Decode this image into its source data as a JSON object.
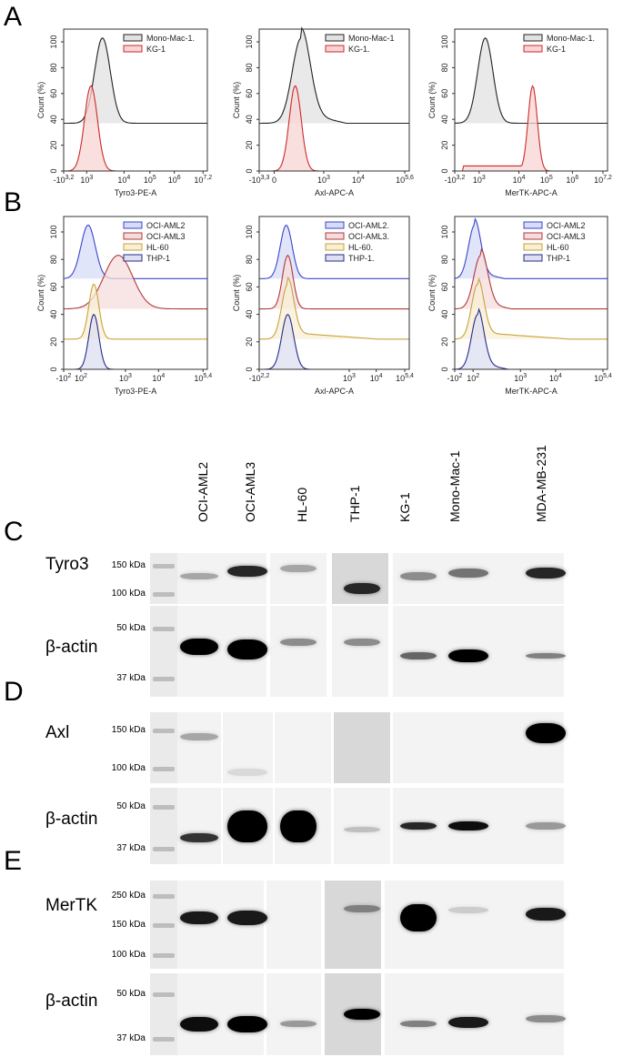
{
  "panels": {
    "A": "A",
    "B": "B",
    "C": "C",
    "D": "D",
    "E": "E"
  },
  "flow": {
    "ylabel": "Count  (%)",
    "yticks": [
      "0",
      "20",
      "40",
      "60",
      "80",
      "100"
    ],
    "row_A": [
      {
        "xlabel": "Tyro3-PE-A",
        "xticks": [
          {
            "b": "-10",
            "e": "3,2"
          },
          {
            "b": "10",
            "e": "3"
          },
          {
            "b": "10",
            "e": "4"
          },
          {
            "b": "10",
            "e": "5"
          },
          {
            "b": "10",
            "e": "6"
          },
          {
            "b": "10",
            "e": "7,2"
          }
        ],
        "legend": [
          {
            "label": "Mono-Mac-1.",
            "color": "#222222",
            "fill": "#e2e2e2"
          },
          {
            "label": "KG-1",
            "color": "#cc2a2a",
            "fill": "#f8d4d4"
          }
        ]
      },
      {
        "xlabel": "Axl-APC-A",
        "xticks": [
          {
            "b": "-10",
            "e": "3,3"
          },
          {
            "b": "0",
            "e": ""
          },
          {
            "b": "10",
            "e": "3"
          },
          {
            "b": "10",
            "e": "4"
          },
          {
            "b": "10",
            "e": "5,6"
          }
        ],
        "legend": [
          {
            "label": "Mono-Mac-1",
            "color": "#222222",
            "fill": "#e2e2e2"
          },
          {
            "label": "KG-1.",
            "color": "#cc2a2a",
            "fill": "#f8d4d4"
          }
        ]
      },
      {
        "xlabel": "MerTK-APC-A",
        "xticks": [
          {
            "b": "-10",
            "e": "3,2"
          },
          {
            "b": "10",
            "e": "3"
          },
          {
            "b": "10",
            "e": "4"
          },
          {
            "b": "10",
            "e": "5"
          },
          {
            "b": "10",
            "e": "6"
          },
          {
            "b": "10",
            "e": "7,2"
          }
        ],
        "legend": [
          {
            "label": "Mono-Mac-1.",
            "color": "#222222",
            "fill": "#e2e2e2"
          },
          {
            "label": "KG-1",
            "color": "#cc2a2a",
            "fill": "#f8d4d4"
          }
        ]
      }
    ],
    "row_B": [
      {
        "xlabel": "Tyro3-PE-A",
        "xticks": [
          {
            "b": "-10",
            "e": "2"
          },
          {
            "b": "10",
            "e": "2"
          },
          {
            "b": "10",
            "e": "3"
          },
          {
            "b": "10",
            "e": "4"
          },
          {
            "b": "10",
            "e": "5,4"
          }
        ],
        "legend": [
          {
            "label": "OCI-AML2",
            "color": "#3b46c8",
            "fill": "#d7dcf8"
          },
          {
            "label": "OCI-AML3",
            "color": "#b03a3a",
            "fill": "#f5dcdc"
          },
          {
            "label": "HL-60",
            "color": "#c9a23a",
            "fill": "#f7efd6"
          },
          {
            "label": "THP-1",
            "color": "#252b8a",
            "fill": "#dedff0"
          }
        ]
      },
      {
        "xlabel": "Axl-APC-A",
        "xticks": [
          {
            "b": "-10",
            "e": "2,2"
          },
          {
            "b": "10",
            "e": "3"
          },
          {
            "b": "10",
            "e": "4"
          },
          {
            "b": "10",
            "e": "5,4"
          }
        ],
        "legend": [
          {
            "label": "OCI-AML2.",
            "color": "#3b46c8",
            "fill": "#d7dcf8"
          },
          {
            "label": "OCI-AML3.",
            "color": "#b03a3a",
            "fill": "#f5dcdc"
          },
          {
            "label": "HL-60.",
            "color": "#c9a23a",
            "fill": "#f7efd6"
          },
          {
            "label": "THP-1.",
            "color": "#252b8a",
            "fill": "#dedff0"
          }
        ]
      },
      {
        "xlabel": "MerTK-APC-A",
        "xticks": [
          {
            "b": "-10",
            "e": "2"
          },
          {
            "b": "10",
            "e": "2"
          },
          {
            "b": "10",
            "e": "3"
          },
          {
            "b": "10",
            "e": "4"
          },
          {
            "b": "10",
            "e": "5,4"
          }
        ],
        "legend": [
          {
            "label": "OCI-AML2",
            "color": "#3b46c8",
            "fill": "#d7dcf8"
          },
          {
            "label": "OCI-AML3",
            "color": "#b03a3a",
            "fill": "#f5dcdc"
          },
          {
            "label": "HL-60",
            "color": "#c9a23a",
            "fill": "#f7efd6"
          },
          {
            "label": "THP-1",
            "color": "#252b8a",
            "fill": "#dedff0"
          }
        ]
      }
    ]
  },
  "blots": {
    "lanes": [
      "OCI-AML2",
      "OCI-AML3",
      "HL-60",
      "THP-1",
      "KG-1",
      "Mono-Mac-1",
      "MDA-MB-231"
    ],
    "C": {
      "target": {
        "label": "Tyro3",
        "markers": [
          "150 kDa",
          "100 kDa"
        ]
      },
      "actin": {
        "label": "β-actin",
        "markers": [
          "50 kDa",
          "37 kDa"
        ]
      }
    },
    "D": {
      "target": {
        "label": "Axl",
        "markers": [
          "150 kDa",
          "100 kDa"
        ]
      },
      "actin": {
        "label": "β-actin",
        "markers": [
          "50 kDa",
          "37 kDa"
        ]
      }
    },
    "E": {
      "target": {
        "label": "MerTK",
        "markers": [
          "250 kDa",
          "150 kDa",
          "100 kDa"
        ]
      },
      "actin": {
        "label": "β-actin",
        "markers": [
          "50 kDa",
          "37 kDa"
        ]
      }
    }
  }
}
